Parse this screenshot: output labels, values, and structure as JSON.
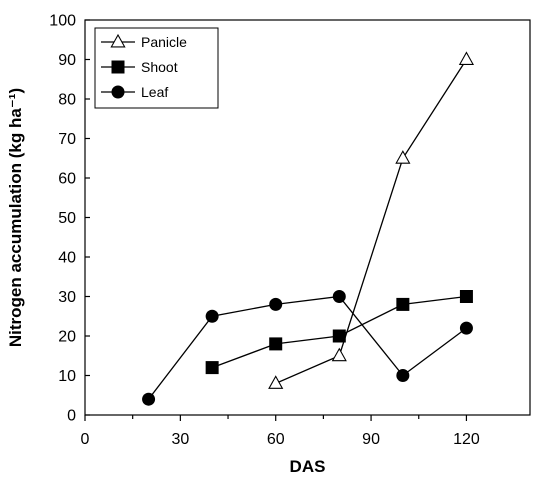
{
  "chart_data": {
    "type": "line",
    "xlabel": "DAS",
    "ylabel": "Nitrogen accumulation (kg ha⁻¹)",
    "xlim": [
      0,
      140
    ],
    "ylim": [
      0,
      100
    ],
    "xticks": [
      0,
      30,
      60,
      90,
      120
    ],
    "yticks": [
      0,
      10,
      20,
      30,
      40,
      50,
      60,
      70,
      80,
      90,
      100
    ],
    "grid": false,
    "legend_position": "top-left",
    "series": [
      {
        "name": "Panicle",
        "marker": "triangle-open",
        "x": [
          60,
          80,
          100,
          120
        ],
        "y": [
          8,
          15,
          65,
          90
        ]
      },
      {
        "name": "Shoot",
        "marker": "square-filled",
        "x": [
          40,
          60,
          80,
          100,
          120
        ],
        "y": [
          12,
          18,
          20,
          28,
          30
        ]
      },
      {
        "name": "Leaf",
        "marker": "circle-filled",
        "x": [
          20,
          40,
          60,
          80,
          100,
          120
        ],
        "y": [
          4,
          25,
          28,
          30,
          10,
          22
        ]
      }
    ]
  }
}
